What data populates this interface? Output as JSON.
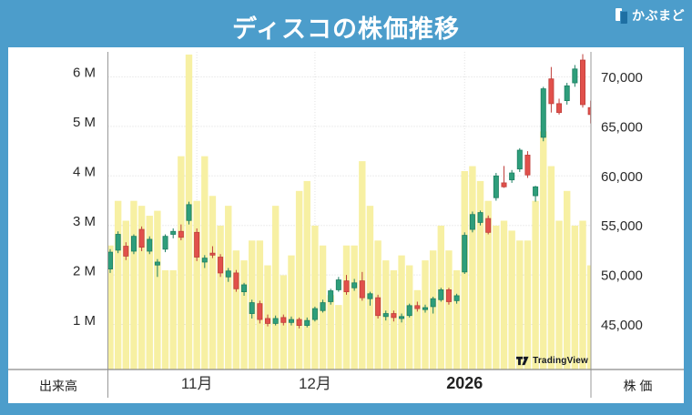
{
  "header": {
    "title": "ディスコの株価推移",
    "logo_text": "かぶまど"
  },
  "panes": {
    "volume_pane_label": "出来高",
    "price_pane_label": "株 価"
  },
  "chart_data": {
    "type": "candlestick_with_volume",
    "title": "ディスコの株価推移",
    "watermark": "TradingView",
    "legend_position": "none",
    "grid": true,
    "price_axis": {
      "side": "right",
      "range": [
        41000,
        72600
      ],
      "ticks": [
        {
          "label": "70,000",
          "value": 70000
        },
        {
          "label": "65,000",
          "value": 65000
        },
        {
          "label": "60,000",
          "value": 60000
        },
        {
          "label": "55,000",
          "value": 55000
        },
        {
          "label": "50,000",
          "value": 50000
        },
        {
          "label": "45,000",
          "value": 45000
        }
      ]
    },
    "volume_axis": {
      "side": "left",
      "unit": "millions_of_shares",
      "ticks": [
        {
          "label": "6 M",
          "value": 6
        },
        {
          "label": "5 M",
          "value": 5
        },
        {
          "label": "4 M",
          "value": 4
        },
        {
          "label": "3 M",
          "value": 3
        },
        {
          "label": "2 M",
          "value": 2
        },
        {
          "label": "1 M",
          "value": 1
        }
      ]
    },
    "x_axis": {
      "months": [
        {
          "index": 11,
          "label": "11月",
          "bold": false
        },
        {
          "index": 26,
          "label": "12月",
          "bold": false
        },
        {
          "index": 45,
          "label": "2026",
          "bold": true
        }
      ]
    },
    "colors": {
      "up": "#2e9e7b",
      "up_border": "#1d7f62",
      "down": "#e1504b",
      "down_border": "#bf3f3b",
      "volume": "#f7f0a3",
      "frame_blue": "#4c9dcb"
    },
    "candle_columns": [
      "open",
      "high",
      "low",
      "close",
      "volume_millions"
    ],
    "candles": [
      [
        50600,
        52600,
        50200,
        52300,
        2.5
      ],
      [
        52500,
        54400,
        52200,
        54100,
        3.4
      ],
      [
        52900,
        53300,
        51500,
        51900,
        3.0
      ],
      [
        52400,
        54100,
        52100,
        53900,
        3.4
      ],
      [
        54600,
        54900,
        52400,
        52800,
        3.3
      ],
      [
        52400,
        53900,
        52100,
        53600,
        3.1
      ],
      [
        51000,
        51600,
        49800,
        51300,
        3.2
      ],
      [
        52600,
        54100,
        52300,
        53900,
        2.0
      ],
      [
        54100,
        54700,
        53700,
        54400,
        2.0
      ],
      [
        54400,
        55100,
        53500,
        53800,
        4.3
      ],
      [
        55500,
        57400,
        55100,
        57100,
        6.35
      ],
      [
        54300,
        54700,
        51400,
        51800,
        3.4
      ],
      [
        51300,
        52000,
        50700,
        51700,
        4.3
      ],
      [
        52200,
        52900,
        51700,
        52000,
        3.5
      ],
      [
        51800,
        52100,
        49800,
        50200,
        2.9
      ],
      [
        49800,
        50700,
        49300,
        50400,
        3.3
      ],
      [
        50200,
        50500,
        48300,
        48600,
        2.4
      ],
      [
        48300,
        49200,
        47900,
        49000,
        2.2
      ],
      [
        46100,
        47500,
        45600,
        47200,
        2.6
      ],
      [
        47100,
        47400,
        45100,
        45500,
        2.6
      ],
      [
        45600,
        46000,
        44800,
        45100,
        2.1
      ],
      [
        45100,
        45900,
        44900,
        45600,
        3.3
      ],
      [
        45700,
        46000,
        44900,
        45200,
        1.9
      ],
      [
        45200,
        45800,
        44900,
        45500,
        2.3
      ],
      [
        45500,
        45700,
        44600,
        44900,
        3.6
      ],
      [
        44900,
        45700,
        44700,
        45400,
        3.8
      ],
      [
        45500,
        46800,
        45300,
        46600,
        2.9
      ],
      [
        46400,
        47500,
        46200,
        47200,
        2.5
      ],
      [
        47300,
        48600,
        47000,
        48400,
        1.5
      ],
      [
        48500,
        49800,
        48300,
        49500,
        1.3
      ],
      [
        49400,
        50000,
        48000,
        48300,
        2.5
      ],
      [
        48700,
        49600,
        48400,
        49200,
        2.5
      ],
      [
        49400,
        50300,
        47400,
        47700,
        4.2
      ],
      [
        47600,
        48300,
        46900,
        48100,
        3.3
      ],
      [
        47700,
        48000,
        45600,
        45900,
        2.6
      ],
      [
        45800,
        46400,
        45400,
        46100,
        2.2
      ],
      [
        46100,
        46400,
        45300,
        45700,
        2.0
      ],
      [
        45600,
        46100,
        45200,
        45800,
        2.3
      ],
      [
        45900,
        47100,
        45700,
        46900,
        2.1
      ],
      [
        46900,
        47300,
        46300,
        46600,
        1.6
      ],
      [
        46500,
        47000,
        46200,
        46700,
        2.2
      ],
      [
        46800,
        47800,
        46100,
        47600,
        2.4
      ],
      [
        47500,
        48700,
        47300,
        48500,
        2.9
      ],
      [
        48500,
        48700,
        47000,
        47300,
        2.4
      ],
      [
        47400,
        48100,
        47100,
        47900,
        2.0
      ],
      [
        50300,
        54300,
        50100,
        54000,
        4.0
      ],
      [
        54600,
        56400,
        54300,
        56100,
        4.1
      ],
      [
        55300,
        56500,
        55000,
        56300,
        3.8
      ],
      [
        55700,
        56000,
        54100,
        54300,
        3.4
      ],
      [
        57800,
        60300,
        57500,
        60000,
        2.9
      ],
      [
        59300,
        61000,
        58800,
        58900,
        3.0
      ],
      [
        59600,
        60600,
        59300,
        60300,
        2.8
      ],
      [
        60700,
        62800,
        60400,
        62600,
        2.6
      ],
      [
        62100,
        62500,
        59800,
        60100,
        2.6
      ],
      [
        58000,
        59000,
        57400,
        58900,
        3.4
      ],
      [
        63900,
        69000,
        63500,
        68800,
        4.8
      ],
      [
        69800,
        71000,
        66400,
        67300,
        4.1
      ],
      [
        67300,
        67800,
        66200,
        66400,
        3.0
      ],
      [
        67600,
        69400,
        67200,
        69100,
        3.6
      ],
      [
        69400,
        71200,
        69000,
        70800,
        2.9
      ],
      [
        71700,
        72300,
        66900,
        67200,
        3.0
      ],
      [
        66900,
        67600,
        65300,
        66200,
        2.1
      ]
    ]
  }
}
